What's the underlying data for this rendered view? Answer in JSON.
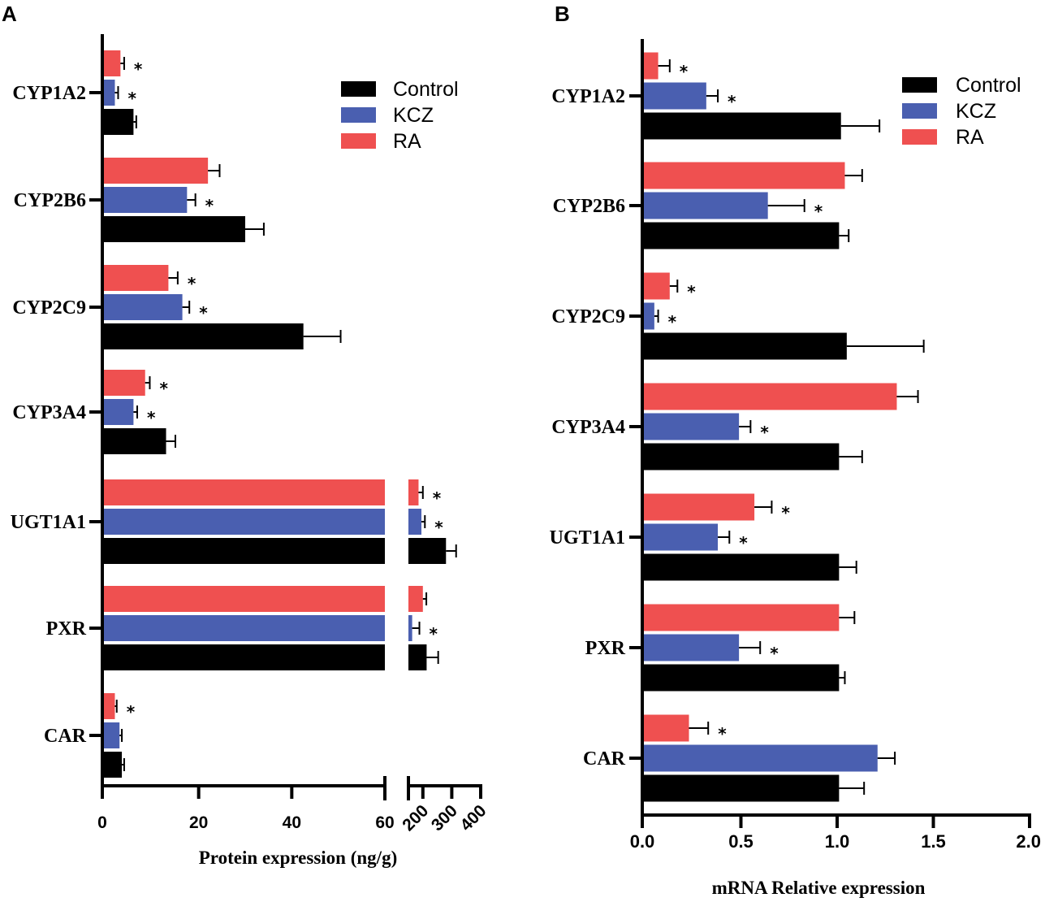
{
  "colors": {
    "Control": "#000000",
    "KCZ": "#4a5fb0",
    "RA": "#ef5050"
  },
  "chart_data": [
    {
      "panel": "A",
      "type": "bar",
      "orientation": "horizontal",
      "xlabel": "Protein expression (ng/g)",
      "axis_break": {
        "from": 60,
        "to": 150
      },
      "xlim_segments": [
        [
          0,
          60
        ],
        [
          150,
          400
        ]
      ],
      "xticks_left": [
        0,
        20,
        40,
        60
      ],
      "xticks_right": [
        200,
        300,
        400
      ],
      "xtick_labels_left": [
        "0",
        "20",
        "40",
        "60"
      ],
      "xtick_labels_right": [
        "200",
        "300",
        "400"
      ],
      "legend": {
        "position": "top-right",
        "entries": [
          "Control",
          "KCZ",
          "RA"
        ]
      },
      "categories": [
        "CYP1A2",
        "CYP2B6",
        "CYP2C9",
        "CYP3A4",
        "UGT1A1",
        "PXR",
        "CAR"
      ],
      "series": [
        {
          "name": "RA",
          "values": [
            3.2,
            22,
            13.5,
            8.5,
            185,
            200,
            2
          ],
          "errors": [
            0.8,
            2.5,
            2,
            1,
            15,
            12,
            0.4
          ],
          "significant": [
            true,
            false,
            true,
            true,
            true,
            false,
            true
          ]
        },
        {
          "name": "KCZ",
          "values": [
            2,
            17.5,
            16.5,
            6,
            195,
            163,
            3
          ],
          "errors": [
            0.7,
            1.8,
            1.5,
            0.8,
            12,
            25,
            0.5
          ],
          "significant": [
            true,
            true,
            true,
            true,
            true,
            true,
            false
          ]
        },
        {
          "name": "Control",
          "values": [
            6,
            30,
            42.5,
            13,
            280,
            213,
            3.5
          ],
          "errors": [
            0.6,
            4,
            8,
            2,
            35,
            40,
            0.5
          ],
          "significant": [
            false,
            false,
            false,
            false,
            false,
            false,
            false
          ]
        }
      ]
    },
    {
      "panel": "B",
      "type": "bar",
      "orientation": "horizontal",
      "xlabel": "mRNA Relative expression",
      "xlim": [
        0,
        2
      ],
      "xticks": [
        0,
        0.5,
        1,
        1.5,
        2
      ],
      "xtick_labels": [
        "0.0",
        "0.5",
        "1.0",
        "1.5",
        "2.0"
      ],
      "legend": {
        "position": "top-right",
        "entries": [
          "Control",
          "KCZ",
          "RA"
        ]
      },
      "categories": [
        "CYP1A2",
        "CYP2B6",
        "CYP2C9",
        "CYP3A4",
        "UGT1A1",
        "PXR",
        "CAR"
      ],
      "series": [
        {
          "name": "RA",
          "values": [
            0.07,
            1.04,
            0.13,
            1.31,
            0.57,
            1.01,
            0.23
          ],
          "errors": [
            0.06,
            0.09,
            0.04,
            0.11,
            0.09,
            0.08,
            0.1
          ],
          "significant": [
            true,
            false,
            true,
            false,
            true,
            false,
            true
          ]
        },
        {
          "name": "KCZ",
          "values": [
            0.32,
            0.64,
            0.05,
            0.49,
            0.38,
            0.49,
            1.21
          ],
          "errors": [
            0.06,
            0.19,
            0.02,
            0.06,
            0.06,
            0.11,
            0.09
          ],
          "significant": [
            true,
            true,
            true,
            true,
            true,
            true,
            false
          ]
        },
        {
          "name": "Control",
          "values": [
            1.02,
            1.01,
            1.05,
            1.01,
            1.01,
            1.01,
            1.01
          ],
          "errors": [
            0.2,
            0.05,
            0.4,
            0.12,
            0.09,
            0.03,
            0.13
          ],
          "significant": [
            false,
            false,
            false,
            false,
            false,
            false,
            false
          ]
        }
      ]
    }
  ]
}
